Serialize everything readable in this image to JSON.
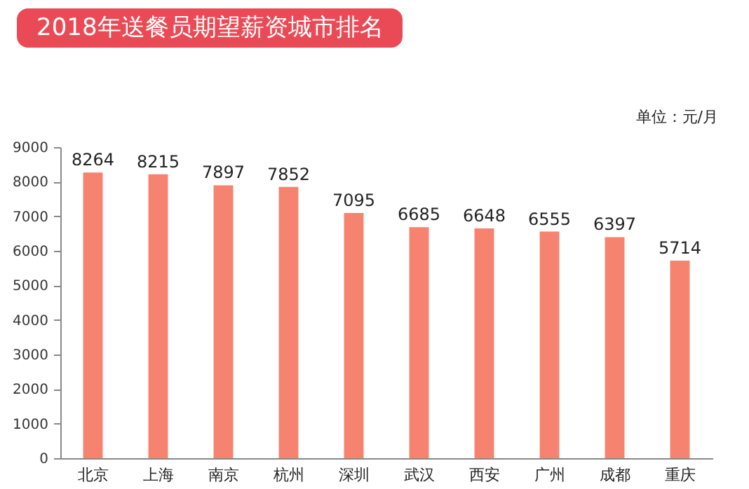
{
  "chart_data": {
    "type": "bar",
    "title": "2018年送餐员期望薪资城市排名",
    "annotations": [
      "单位：元/月"
    ],
    "categories": [
      "北京",
      "上海",
      "南京",
      "杭州",
      "深圳",
      "武汉",
      "西安",
      "广州",
      "成都",
      "重庆"
    ],
    "values": [
      8264,
      8215,
      7897,
      7852,
      7095,
      6685,
      6648,
      6555,
      6397,
      5714
    ],
    "color": "#f6836f",
    "ylim": [
      0,
      9000
    ],
    "yticks": [
      0,
      1000,
      2000,
      3000,
      4000,
      5000,
      6000,
      7000,
      8000,
      9000
    ],
    "grid": false,
    "data_labels": true
  }
}
